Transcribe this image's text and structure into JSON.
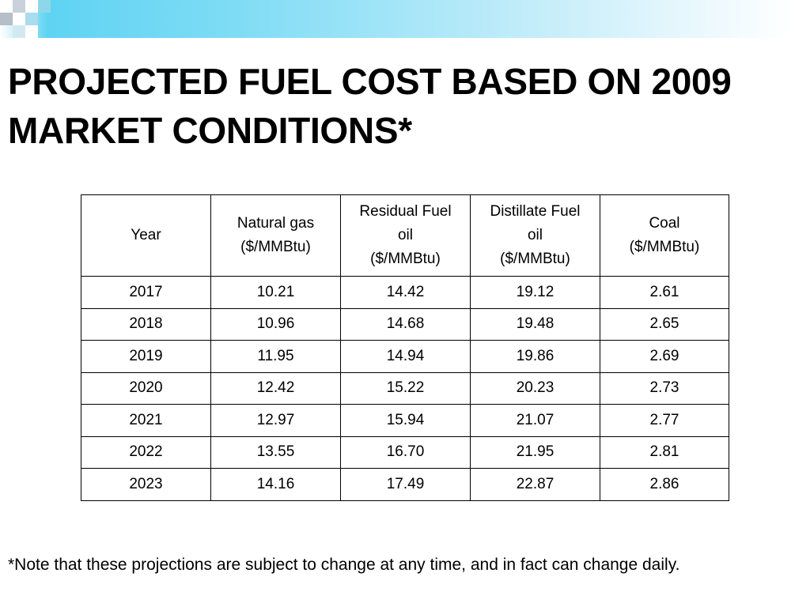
{
  "slide": {
    "title": "PROJECTED FUEL COST BASED ON 2009 MARKET CONDITIONS*",
    "footnote": "*Note that these projections are subject to change at any time, and in fact can change daily.",
    "accent_colors": [
      "#5fd3f3",
      "#7fdcf5",
      "#c8eefa",
      "#8ed7ea"
    ]
  },
  "table": {
    "headers": [
      {
        "lines": [
          "Year"
        ]
      },
      {
        "lines": [
          "Natural gas",
          "($/MMBtu)"
        ]
      },
      {
        "lines": [
          "Residual Fuel",
          "oil",
          "($/MMBtu)"
        ]
      },
      {
        "lines": [
          "Distillate Fuel",
          "oil",
          "($/MMBtu)"
        ]
      },
      {
        "lines": [
          "Coal",
          "($/MMBtu)"
        ]
      }
    ],
    "rows": [
      [
        "2017",
        "10.21",
        "14.42",
        "19.12",
        "2.61"
      ],
      [
        "2018",
        "10.96",
        "14.68",
        "19.48",
        "2.65"
      ],
      [
        "2019",
        "11.95",
        "14.94",
        "19.86",
        "2.69"
      ],
      [
        "2020",
        "12.42",
        "15.22",
        "20.23",
        "2.73"
      ],
      [
        "2021",
        "12.97",
        "15.94",
        "21.07",
        "2.77"
      ],
      [
        "2022",
        "13.55",
        "16.70",
        "21.95",
        "2.81"
      ],
      [
        "2023",
        "14.16",
        "17.49",
        "22.87",
        "2.86"
      ]
    ]
  }
}
